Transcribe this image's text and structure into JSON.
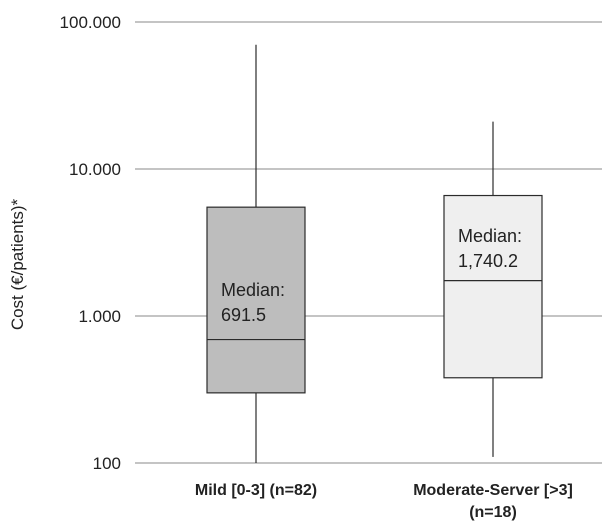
{
  "chart_data": {
    "type": "box",
    "title": "",
    "ylabel": "Cost (€/patients)*",
    "xlabel": "",
    "y_scale": "log",
    "ylim": [
      100,
      100000
    ],
    "y_ticks": [
      100,
      1000,
      10000,
      100000
    ],
    "y_tick_labels": [
      "100",
      "1.000",
      "10.000",
      "100.000"
    ],
    "grid": true,
    "categories": [
      {
        "label_lines": [
          "Mild [0-3] (n=82)"
        ]
      },
      {
        "label_lines": [
          "Moderate-Server [>3]",
          "(n=18)"
        ]
      }
    ],
    "boxes": [
      {
        "whisker_low": 100,
        "q1": 300,
        "median": 691.5,
        "q3": 5500,
        "whisker_high": 70000,
        "annotation": [
          "Median:",
          "691.5"
        ],
        "fill": "#bdbdbd"
      },
      {
        "whisker_low": 110,
        "q1": 380,
        "median": 1740.2,
        "q3": 6600,
        "whisker_high": 21000,
        "annotation": [
          "Median:",
          "1,740.2"
        ],
        "fill": "#efefef"
      }
    ]
  }
}
